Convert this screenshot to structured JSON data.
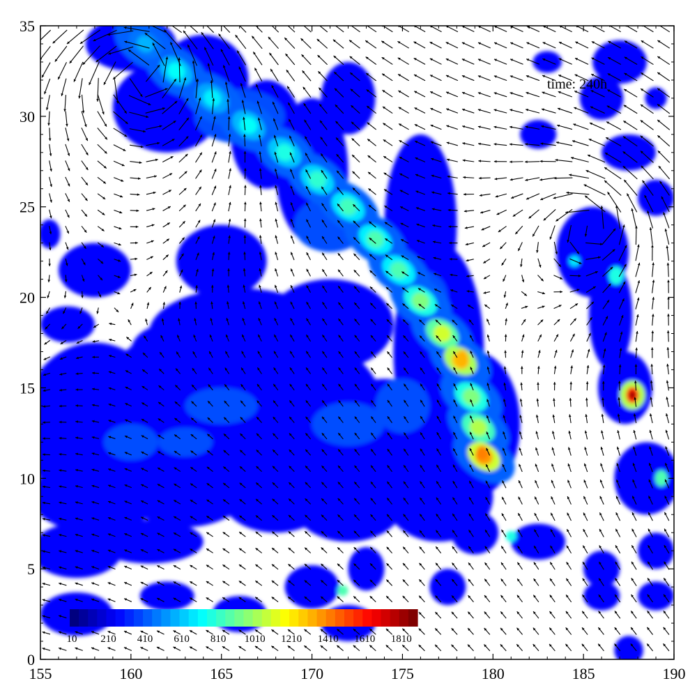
{
  "chart_data": {
    "type": "heatmap",
    "subtype": "filled contour with wind vector field",
    "annotation": "time: 240h",
    "xlim": [
      155,
      190
    ],
    "ylim": [
      0,
      35
    ],
    "xticks": [
      155,
      160,
      165,
      170,
      175,
      180,
      185,
      190
    ],
    "yticks": [
      0,
      5,
      10,
      15,
      20,
      25,
      30,
      35
    ],
    "grid": false,
    "colormap": "jet",
    "colorbar": {
      "placement": "bottom-left inside axes",
      "orientation": "horizontal",
      "range": [
        10,
        1910
      ],
      "levels": 38,
      "tick_labels": [
        "10",
        "210",
        "410",
        "610",
        "810",
        "1010",
        "1210",
        "1410",
        "1610",
        "1810"
      ]
    },
    "colors": {
      "low": "#00008f",
      "mid": "#00ffff",
      "high": "#800000",
      "background": "#ffffff",
      "vectors": "#000000"
    },
    "features": [
      {
        "label": "diagonal rain band",
        "from": [
          160.5,
          34
        ],
        "to": [
          179.5,
          11
        ],
        "peak": 1400
      },
      {
        "label": "isolated maximum",
        "at": [
          187.7,
          14.6
        ],
        "peak": 1900
      },
      {
        "label": "vortex center NW",
        "at": [
          160.5,
          32.5
        ]
      },
      {
        "label": "vortex center E",
        "at": [
          185.5,
          24
        ]
      }
    ]
  }
}
